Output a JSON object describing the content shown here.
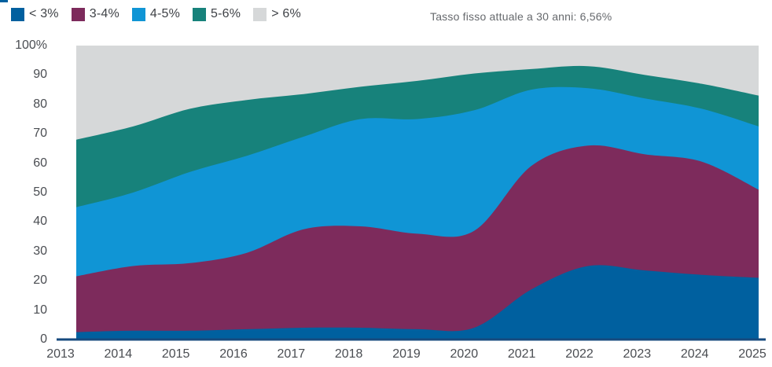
{
  "chart_data": {
    "type": "area",
    "stacked": true,
    "annotation": "Tasso fisso attuale a 30 anni: 6,56%",
    "x": [
      2013,
      2014,
      2015,
      2016,
      2017,
      2018,
      2019,
      2020,
      2021,
      2022,
      2023,
      2024,
      2025
    ],
    "series": [
      {
        "name": "< 3%",
        "color": "#00609f",
        "values": [
          2.5,
          3,
          3,
          3.5,
          4,
          4,
          3.5,
          4,
          17,
          25,
          23.5,
          22,
          21
        ]
      },
      {
        "name": "3-4%",
        "color": "#7d2b5c",
        "values": [
          19,
          22,
          23,
          26,
          33.5,
          34.5,
          32.5,
          33,
          42,
          41,
          39.5,
          38.5,
          30
        ]
      },
      {
        "name": "4-5%",
        "color": "#1095d5",
        "values": [
          23.5,
          25,
          31,
          33,
          31.5,
          36.5,
          39,
          41,
          26,
          19.5,
          19,
          18,
          21.5
        ]
      },
      {
        "name": "5-6%",
        "color": "#17827b",
        "values": [
          23,
          22.5,
          21.5,
          19,
          14.5,
          11,
          13,
          12.5,
          7,
          7.5,
          8,
          8.5,
          10.5
        ]
      },
      {
        "name": "> 6%",
        "color": "#d6d8d9",
        "values": [
          32,
          27.5,
          21.5,
          18.5,
          16.5,
          14,
          12,
          9.5,
          8,
          7,
          10,
          13,
          17
        ]
      }
    ],
    "ylim": [
      0,
      100
    ],
    "yticks": [
      {
        "value": 100,
        "label": "100%"
      },
      {
        "value": 90,
        "label": "90"
      },
      {
        "value": 80,
        "label": "80"
      },
      {
        "value": 70,
        "label": "70"
      },
      {
        "value": 60,
        "label": "60"
      },
      {
        "value": 50,
        "label": "50"
      },
      {
        "value": 40,
        "label": "40"
      },
      {
        "value": 30,
        "label": "30"
      },
      {
        "value": 20,
        "label": "20"
      },
      {
        "value": 10,
        "label": "10"
      },
      {
        "value": 0,
        "label": "0"
      }
    ],
    "grid": false,
    "legend_position": "top-left",
    "axis_line_color": "#164a7e"
  }
}
